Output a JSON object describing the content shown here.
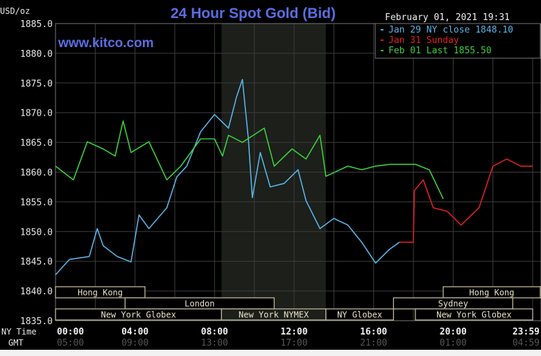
{
  "chart_data": {
    "type": "line",
    "title": "24 Hour Spot Gold (Bid)",
    "ylabel": "USD/oz",
    "watermark": "www.kitco.com",
    "timestamp": "February 01, 2021 19:31",
    "ylim": [
      1835,
      1885
    ],
    "xlim": [
      0,
      24
    ],
    "y_ticks": [
      "1885.0",
      "1880.0",
      "1875.0",
      "1870.0",
      "1865.0",
      "1860.0",
      "1855.0",
      "1850.0",
      "1845.0",
      "1840.0",
      "1835.0"
    ],
    "x_row_label": "NY Time",
    "x_ticks": [
      "00:00",
      "04:00",
      "08:00",
      "12:00",
      "16:00",
      "20:00",
      "23:59"
    ],
    "gmt_row_label": "GMT",
    "gmt_ticks": [
      "05:00",
      "09:00",
      "13:00",
      "17:00",
      "21:00",
      "01:00",
      "04:59"
    ],
    "grid": true,
    "legend_position": "top-right",
    "shaded_session_hours": [
      8.35,
      13.6
    ],
    "series": [
      {
        "name": "Jan 29 NY close 1848.10",
        "color": "#5ab4e6",
        "points": [
          [
            0,
            1842.7
          ],
          [
            0.7,
            1845.3
          ],
          [
            1.7,
            1845.8
          ],
          [
            2.1,
            1850.5
          ],
          [
            2.4,
            1847.6
          ],
          [
            3.1,
            1845.8
          ],
          [
            3.8,
            1844.9
          ],
          [
            4.2,
            1852.8
          ],
          [
            4.7,
            1850.5
          ],
          [
            5.6,
            1854
          ],
          [
            6.1,
            1859.2
          ],
          [
            6.6,
            1861
          ],
          [
            7.3,
            1866.8
          ],
          [
            8.0,
            1869.7
          ],
          [
            8.7,
            1867.4
          ],
          [
            9.1,
            1872.6
          ],
          [
            9.4,
            1875.6
          ],
          [
            9.7,
            1865.6
          ],
          [
            9.9,
            1855.7
          ],
          [
            10.3,
            1863.3
          ],
          [
            10.8,
            1857.5
          ],
          [
            11.5,
            1858.1
          ],
          [
            12.2,
            1860.4
          ],
          [
            12.6,
            1855.2
          ],
          [
            13.3,
            1850.5
          ],
          [
            14.0,
            1852.2
          ],
          [
            14.7,
            1851.1
          ],
          [
            15.4,
            1848.2
          ],
          [
            16.1,
            1844.7
          ],
          [
            16.8,
            1847
          ],
          [
            17.3,
            1848.2
          ]
        ]
      },
      {
        "name": "Jan 31 Sunday",
        "color": "#e02020",
        "points": [
          [
            17.3,
            1848.2
          ],
          [
            18.0,
            1848.2
          ],
          [
            18.05,
            1856.9
          ],
          [
            18.5,
            1858.7
          ],
          [
            19.0,
            1854
          ],
          [
            19.7,
            1853.4
          ],
          [
            20.4,
            1851.1
          ],
          [
            21.3,
            1854
          ],
          [
            22.0,
            1861
          ],
          [
            22.7,
            1862.2
          ],
          [
            23.4,
            1861
          ],
          [
            24,
            1861
          ]
        ]
      },
      {
        "name": "Feb 01 Last 1855.50",
        "color": "#3ccf3c",
        "points": [
          [
            0,
            1861
          ],
          [
            0.9,
            1858.7
          ],
          [
            1.6,
            1865.1
          ],
          [
            2.4,
            1863.9
          ],
          [
            3.0,
            1862.7
          ],
          [
            3.4,
            1868.6
          ],
          [
            3.8,
            1863.3
          ],
          [
            4.7,
            1865.1
          ],
          [
            5.6,
            1858.7
          ],
          [
            6.3,
            1861
          ],
          [
            7.3,
            1865.6
          ],
          [
            8.0,
            1865.6
          ],
          [
            8.4,
            1862.7
          ],
          [
            8.7,
            1866.2
          ],
          [
            9.4,
            1865
          ],
          [
            10.5,
            1867.4
          ],
          [
            11.0,
            1861
          ],
          [
            11.9,
            1863.9
          ],
          [
            12.6,
            1862.2
          ],
          [
            13.3,
            1866.2
          ],
          [
            13.6,
            1859.3
          ],
          [
            14.7,
            1861
          ],
          [
            15.4,
            1860.4
          ],
          [
            16.1,
            1861
          ],
          [
            16.8,
            1861.3
          ],
          [
            18.1,
            1861.3
          ],
          [
            18.8,
            1860.4
          ],
          [
            19.5,
            1855.5
          ]
        ]
      }
    ],
    "sessions": [
      {
        "label": "Hong Kong",
        "row": 0,
        "start": 0,
        "end": 4.5
      },
      {
        "label": "Hong Kong",
        "row": 0,
        "start": 19.5,
        "end": 24.4
      },
      {
        "label": "London",
        "row": 1,
        "start": 3.5,
        "end": 11.0
      },
      {
        "label": "Sydney",
        "row": 1,
        "start": 17.0,
        "end": 23.0
      },
      {
        "label": "New York Globex",
        "row": 2,
        "start": 0,
        "end": 8.35
      },
      {
        "label": "New York NYMEX",
        "row": 2,
        "start": 8.35,
        "end": 13.6
      },
      {
        "label": "NY Globex",
        "row": 2,
        "start": 13.6,
        "end": 17.0
      },
      {
        "label": "New York Globex",
        "row": 2,
        "start": 18.1,
        "end": 24
      }
    ]
  }
}
